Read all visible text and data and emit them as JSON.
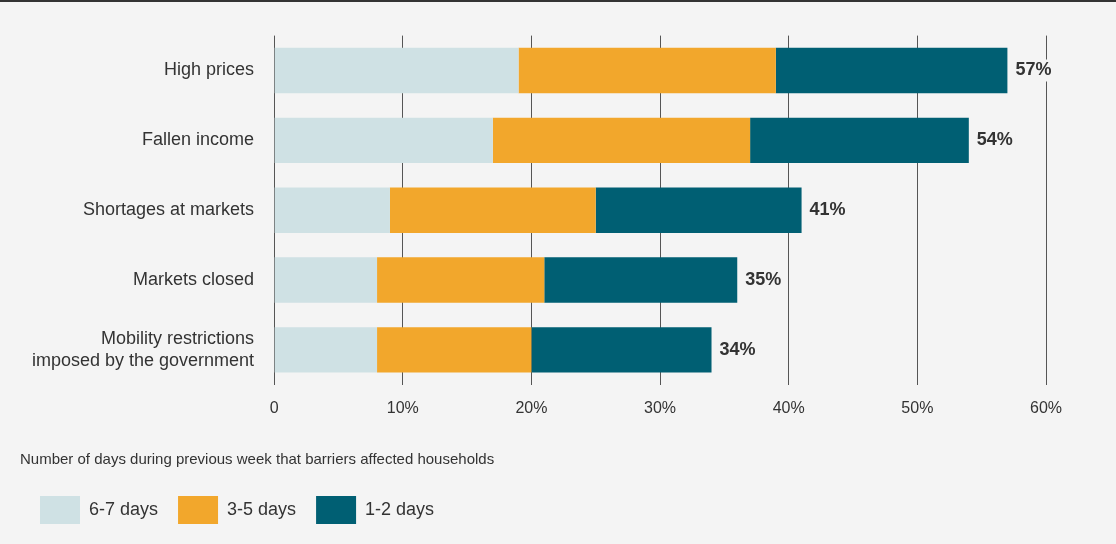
{
  "chart_data": {
    "type": "bar",
    "orientation": "horizontal",
    "stacked": true,
    "categories": [
      "High prices",
      "Fallen income",
      "Shortages at markets",
      "Markets closed",
      "Mobility restrictions imposed by the government"
    ],
    "series": [
      {
        "name": "6-7 days",
        "color": "#cfe1e4",
        "values": [
          19,
          17,
          9,
          8,
          8
        ]
      },
      {
        "name": "3-5 days",
        "color": "#f2a72c",
        "values": [
          20,
          20,
          16,
          13,
          12
        ]
      },
      {
        "name": "1-2 days",
        "color": "#005f73",
        "values": [
          18,
          17,
          16,
          15,
          14
        ]
      }
    ],
    "totals": [
      "57%",
      "54%",
      "41%",
      "35%",
      "34%"
    ],
    "xlim": [
      0,
      60
    ],
    "xticks": [
      0,
      {
        "value": 10,
        "label": "10%"
      },
      {
        "value": 20,
        "label": "20%"
      },
      {
        "value": 30,
        "label": "30%"
      },
      {
        "value": 40,
        "label": "40%"
      },
      {
        "value": 50,
        "label": "50%"
      },
      {
        "value": 60,
        "label": "60%"
      }
    ],
    "grid": "x",
    "legend": "bottom",
    "legend_title": "Number of days during previous week that barriers affected households"
  }
}
